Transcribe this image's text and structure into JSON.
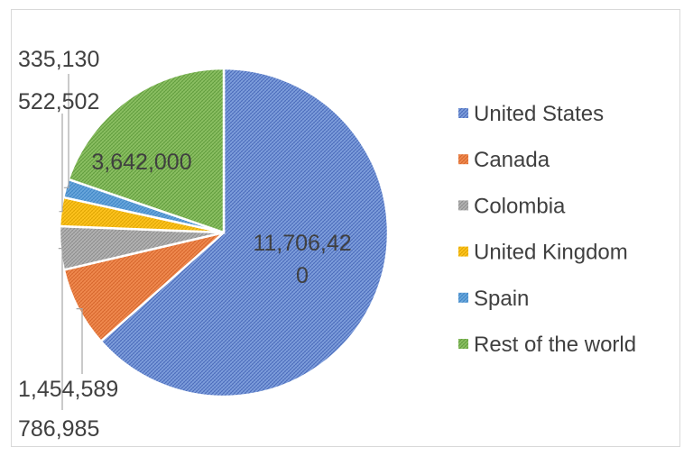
{
  "chart_data": {
    "type": "pie",
    "title": "",
    "legend_position": "right",
    "start_angle_deg": 0,
    "direction": "clockwise",
    "slice_pattern": "hatched",
    "categories": [
      "United States",
      "Canada",
      "Colombia",
      "United Kingdom",
      "Spain",
      "Rest of the world"
    ],
    "values": [
      11706420,
      1454589,
      786985,
      522502,
      335130,
      3642000
    ],
    "data_labels": [
      "11,706,420",
      "1,454,589",
      "786,985",
      "522,502",
      "335,130",
      "3,642,000"
    ],
    "colors": [
      "#7f9fdc",
      "#f08a4f",
      "#b3b3b3",
      "#ffc41f",
      "#6aa7dc",
      "#8cc063"
    ],
    "pattern_colors": [
      "#4667b8",
      "#d4642a",
      "#8a8a8a",
      "#dca300",
      "#3c83c4",
      "#5e9a3a"
    ]
  }
}
